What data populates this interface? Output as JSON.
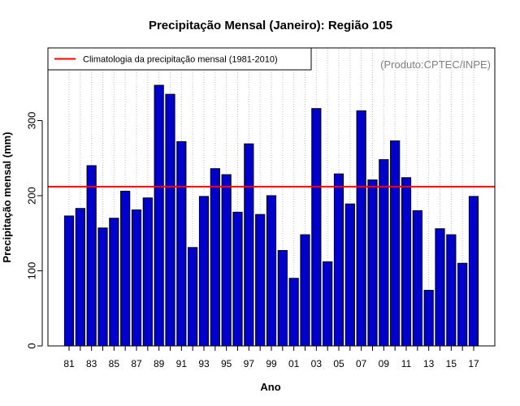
{
  "chart_data": {
    "type": "bar",
    "title": "Precipitação Mensal (Janeiro): Região 105",
    "xlabel": "Ano",
    "ylabel": "Precipitação mensal (mm)",
    "credit": "(Produto:CPTEC/INPE)",
    "categories": [
      "81",
      "82",
      "83",
      "84",
      "85",
      "86",
      "87",
      "88",
      "89",
      "90",
      "91",
      "92",
      "93",
      "94",
      "95",
      "96",
      "97",
      "98",
      "99",
      "00",
      "01",
      "02",
      "03",
      "04",
      "05",
      "06",
      "07",
      "08",
      "09",
      "10",
      "11",
      "12",
      "13",
      "14",
      "15",
      "16",
      "17"
    ],
    "tick_labels": [
      "81",
      "83",
      "85",
      "87",
      "89",
      "91",
      "93",
      "95",
      "97",
      "99",
      "01",
      "03",
      "05",
      "07",
      "09",
      "11",
      "13",
      "15",
      "17"
    ],
    "values": [
      173,
      183,
      240,
      157,
      170,
      206,
      181,
      197,
      347,
      335,
      272,
      131,
      199,
      236,
      228,
      178,
      269,
      175,
      200,
      127,
      90,
      148,
      316,
      112,
      229,
      189,
      313,
      221,
      248,
      273,
      224,
      180,
      74,
      156,
      148,
      110,
      199
    ],
    "yticks": [
      0,
      100,
      200,
      300
    ],
    "ylim": [
      0,
      390
    ],
    "grid": "vertical dotted",
    "legend": {
      "position": "top-left",
      "label": "Climatologia da precipitação mensal (1981-2010)"
    },
    "climatology": 212,
    "colors": {
      "bar_fill": "#0000CD",
      "bar_stroke": "#000000",
      "climatology_line": "#FF0000",
      "grid": "#BEBEBE",
      "credit": "#808080"
    }
  }
}
